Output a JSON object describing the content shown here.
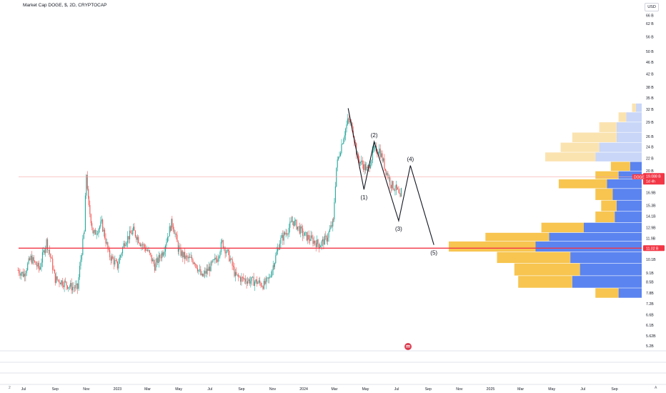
{
  "header": {
    "title": "Market Cap DOGE, $, 2D, CRYPTOCAP",
    "currency": "USD"
  },
  "footer": {
    "left_mark": "2",
    "right_mark": "A"
  },
  "colors": {
    "up_candle": "#26a69a",
    "down_candle": "#ef5350",
    "vp_up": "#5b84f0",
    "vp_down": "#f7c550",
    "vp_up_light": "#c9d6f8",
    "vp_down_light": "#fbe3b0",
    "poc_line": "#f23645",
    "wave_line": "#131722"
  },
  "chart_data": {
    "type": "candlestick",
    "series_name": "DOGE",
    "y_scale": "log",
    "ylim_billion_usd": [
      5.2,
      68
    ],
    "y_tick_labels": [
      {
        "label": "66 B",
        "value": 66
      },
      {
        "label": "62 B",
        "value": 62
      },
      {
        "label": "56 B",
        "value": 56
      },
      {
        "label": "50 B",
        "value": 50
      },
      {
        "label": "46 B",
        "value": 46
      },
      {
        "label": "42 B",
        "value": 42
      },
      {
        "label": "38 B",
        "value": 38
      },
      {
        "label": "35 B",
        "value": 35
      },
      {
        "label": "32 B",
        "value": 32
      },
      {
        "label": "29 B",
        "value": 29
      },
      {
        "label": "26 B",
        "value": 26
      },
      {
        "label": "24 B",
        "value": 24
      },
      {
        "label": "22 B",
        "value": 22
      },
      {
        "label": "20 B",
        "value": 20
      },
      {
        "label": "16.9B",
        "value": 16.9
      },
      {
        "label": "15.3B",
        "value": 15.3
      },
      {
        "label": "14.1B",
        "value": 14.1
      },
      {
        "label": "12.9B",
        "value": 12.9
      },
      {
        "label": "11.9B",
        "value": 11.9
      },
      {
        "label": "10.1B",
        "value": 10.1
      },
      {
        "label": "9.1B",
        "value": 9.1
      },
      {
        "label": "8.5B",
        "value": 8.5
      },
      {
        "label": "7.8B",
        "value": 7.8
      },
      {
        "label": "7.2B",
        "value": 7.2
      },
      {
        "label": "6.6B",
        "value": 6.6
      },
      {
        "label": "6.1B",
        "value": 6.1
      },
      {
        "label": "5.62B",
        "value": 5.62
      },
      {
        "label": "5.2B",
        "value": 5.2
      }
    ],
    "x_tick_labels": [
      {
        "label": "Jul",
        "date": "2022-07-01"
      },
      {
        "label": "Sep",
        "date": "2022-09-01"
      },
      {
        "label": "Nov",
        "date": "2022-11-01"
      },
      {
        "label": "2023",
        "date": "2023-01-01"
      },
      {
        "label": "Mar",
        "date": "2023-03-01"
      },
      {
        "label": "May",
        "date": "2023-05-01"
      },
      {
        "label": "Jul",
        "date": "2023-07-01"
      },
      {
        "label": "Sep",
        "date": "2023-09-01"
      },
      {
        "label": "Nov",
        "date": "2023-11-01"
      },
      {
        "label": "2024",
        "date": "2024-01-01"
      },
      {
        "label": "Mar",
        "date": "2024-03-01"
      },
      {
        "label": "May",
        "date": "2024-05-01"
      },
      {
        "label": "Jul",
        "date": "2024-07-01"
      },
      {
        "label": "Sep",
        "date": "2024-09-01"
      },
      {
        "label": "Nov",
        "date": "2024-11-01"
      },
      {
        "label": "2025",
        "date": "2025-01-01"
      },
      {
        "label": "Mar",
        "date": "2025-03-01"
      },
      {
        "label": "May",
        "date": "2025-05-01"
      },
      {
        "label": "Jul",
        "date": "2025-07-01"
      },
      {
        "label": "Sep",
        "date": "2025-09-01"
      }
    ],
    "price_path": [
      [
        "2022-06-20",
        9.3
      ],
      [
        "2022-07-01",
        9.0
      ],
      [
        "2022-07-15",
        10.2
      ],
      [
        "2022-08-01",
        9.4
      ],
      [
        "2022-08-15",
        11.6
      ],
      [
        "2022-09-01",
        8.7
      ],
      [
        "2022-09-15",
        8.5
      ],
      [
        "2022-10-01",
        8.2
      ],
      [
        "2022-10-15",
        8.1
      ],
      [
        "2022-10-28",
        12.5
      ],
      [
        "2022-11-01",
        19.5
      ],
      [
        "2022-11-06",
        15.0
      ],
      [
        "2022-11-15",
        12.2
      ],
      [
        "2022-12-01",
        13.3
      ],
      [
        "2022-12-15",
        10.5
      ],
      [
        "2023-01-01",
        9.6
      ],
      [
        "2023-01-15",
        11.6
      ],
      [
        "2023-02-01",
        12.6
      ],
      [
        "2023-02-15",
        11.5
      ],
      [
        "2023-03-01",
        10.8
      ],
      [
        "2023-03-15",
        9.6
      ],
      [
        "2023-04-01",
        10.8
      ],
      [
        "2023-04-18",
        13.5
      ],
      [
        "2023-05-01",
        10.8
      ],
      [
        "2023-05-15",
        10.2
      ],
      [
        "2023-06-01",
        10.0
      ],
      [
        "2023-06-15",
        8.8
      ],
      [
        "2023-07-01",
        9.5
      ],
      [
        "2023-07-15",
        10.2
      ],
      [
        "2023-07-25",
        11.5
      ],
      [
        "2023-08-10",
        10.1
      ],
      [
        "2023-08-20",
        8.9
      ],
      [
        "2023-09-01",
        8.7
      ],
      [
        "2023-09-15",
        8.6
      ],
      [
        "2023-10-01",
        8.5
      ],
      [
        "2023-10-15",
        8.3
      ],
      [
        "2023-10-25",
        8.7
      ],
      [
        "2023-11-05",
        10.0
      ],
      [
        "2023-11-15",
        11.6
      ],
      [
        "2023-12-01",
        12.7
      ],
      [
        "2023-12-10",
        13.6
      ],
      [
        "2023-12-20",
        13.0
      ],
      [
        "2024-01-01",
        12.2
      ],
      [
        "2024-01-15",
        11.8
      ],
      [
        "2024-02-01",
        11.3
      ],
      [
        "2024-02-15",
        11.9
      ],
      [
        "2024-02-28",
        13.5
      ],
      [
        "2024-03-05",
        20.5
      ],
      [
        "2024-03-15",
        24.5
      ],
      [
        "2024-03-28",
        29.5
      ],
      [
        "2024-04-05",
        28.0
      ],
      [
        "2024-04-15",
        22.0
      ],
      [
        "2024-04-25",
        21.0
      ],
      [
        "2024-05-05",
        20.0
      ],
      [
        "2024-05-18",
        23.5
      ],
      [
        "2024-05-28",
        23.5
      ],
      [
        "2024-06-10",
        20.0
      ],
      [
        "2024-06-20",
        18.0
      ],
      [
        "2024-07-01",
        17.3
      ],
      [
        "2024-07-08",
        16.0
      ],
      [
        "2024-07-12",
        18.3
      ]
    ],
    "current_price": {
      "label": "DOGE",
      "value_label": "19.088 B",
      "time_label": "1d 4h",
      "value": 19.088
    },
    "poc_price": {
      "value_label": "11.02 B",
      "value": 11.02
    },
    "wave_path": [
      [
        "2024-03-28",
        32.3
      ],
      [
        "2024-04-28",
        17.3
      ],
      [
        "2024-05-18",
        25.0
      ],
      [
        "2024-07-05",
        13.6
      ],
      [
        "2024-07-28",
        20.8
      ],
      [
        "2024-09-12",
        11.3
      ]
    ],
    "wave_labels": [
      {
        "label": "(1)",
        "anchor": [
          "2024-04-28",
          17.3
        ],
        "pos": "below"
      },
      {
        "label": "(2)",
        "anchor": [
          "2024-05-18",
          25.0
        ],
        "pos": "above"
      },
      {
        "label": "(3)",
        "anchor": [
          "2024-07-05",
          13.6
        ],
        "pos": "below"
      },
      {
        "label": "(4)",
        "anchor": [
          "2024-07-28",
          20.8
        ],
        "pos": "above"
      },
      {
        "label": "(5)",
        "anchor": [
          "2024-09-12",
          11.3
        ],
        "pos": "below"
      }
    ],
    "volume_profile": [
      {
        "lo": 7.5,
        "hi": 8.1,
        "up": 0.12,
        "down": 0.12
      },
      {
        "lo": 8.1,
        "hi": 8.9,
        "up": 0.36,
        "down": 0.28
      },
      {
        "lo": 8.9,
        "hi": 9.8,
        "up": 0.32,
        "down": 0.34
      },
      {
        "lo": 9.8,
        "hi": 10.7,
        "up": 0.37,
        "down": 0.38
      },
      {
        "lo": 10.7,
        "hi": 11.6,
        "up": 0.55,
        "down": 0.45
      },
      {
        "lo": 11.6,
        "hi": 12.4,
        "up": 0.48,
        "down": 0.33
      },
      {
        "lo": 12.4,
        "hi": 13.4,
        "up": 0.3,
        "down": 0.22
      },
      {
        "lo": 13.4,
        "hi": 14.6,
        "up": 0.14,
        "down": 0.1
      },
      {
        "lo": 14.6,
        "hi": 15.9,
        "up": 0.13,
        "down": 0.08
      },
      {
        "lo": 15.9,
        "hi": 17.4,
        "up": 0.15,
        "down": 0.09
      },
      {
        "lo": 17.4,
        "hi": 18.7,
        "up": 0.18,
        "down": 0.25
      },
      {
        "lo": 18.7,
        "hi": 19.9,
        "up": 0.12,
        "down": 0.12
      },
      {
        "lo": 19.9,
        "hi": 21.4,
        "up": 0.06,
        "down": 0.1
      },
      {
        "lo": 21.4,
        "hi": 23.0,
        "up": 0.24,
        "down": 0.26,
        "faded": true
      },
      {
        "lo": 23.0,
        "hi": 24.8,
        "up": 0.22,
        "down": 0.2,
        "faded": true
      },
      {
        "lo": 24.8,
        "hi": 26.8,
        "up": 0.13,
        "down": 0.23,
        "faded": true
      },
      {
        "lo": 26.8,
        "hi": 29.0,
        "up": 0.13,
        "down": 0.09,
        "faded": true
      },
      {
        "lo": 29.0,
        "hi": 31.3,
        "up": 0.08,
        "down": 0.04,
        "faded": true
      },
      {
        "lo": 31.3,
        "hi": 33.5,
        "up": 0.03,
        "down": 0.02,
        "faded": true
      }
    ]
  }
}
